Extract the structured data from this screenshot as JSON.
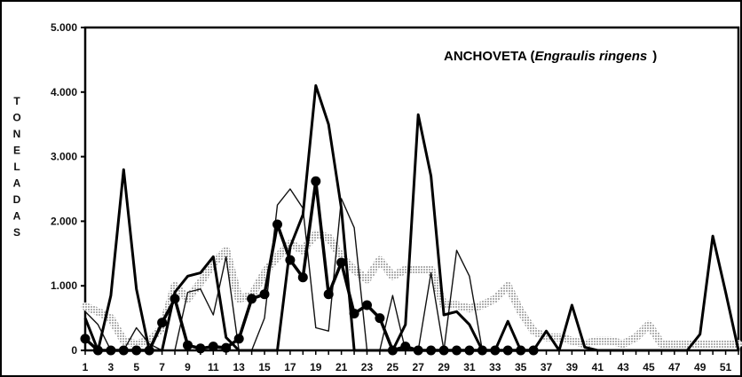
{
  "chart_data": {
    "type": "line",
    "title_plain": "ANCHOVETA (",
    "title_italic": "Engraulis ringens",
    "title_close": ")",
    "ylabel": "TONELADAS",
    "xlabel": "",
    "ylim": [
      0,
      5000
    ],
    "xlim": [
      1,
      52
    ],
    "y_ticks": [
      0,
      1000,
      2000,
      3000,
      4000,
      5000
    ],
    "y_tick_labels": [
      "0",
      "1.000",
      "2.000",
      "3.000",
      "4.000",
      "5.000"
    ],
    "x_ticks": [
      1,
      3,
      5,
      7,
      9,
      11,
      13,
      15,
      17,
      19,
      21,
      23,
      25,
      27,
      29,
      31,
      33,
      35,
      37,
      39,
      41,
      43,
      45,
      47,
      49,
      51
    ],
    "grid": false,
    "series": [
      {
        "style": "thick-dots",
        "color": "#000000",
        "x": [
          1,
          2,
          3,
          4,
          5,
          6,
          7,
          8,
          9,
          10,
          11,
          12,
          13,
          14,
          15,
          16,
          17,
          18,
          19,
          20,
          21,
          22,
          23,
          24,
          25,
          26,
          27,
          28,
          29,
          30,
          31,
          32,
          33,
          34,
          35,
          36
        ],
        "values": [
          180,
          0,
          0,
          0,
          0,
          0,
          430,
          800,
          80,
          30,
          60,
          40,
          180,
          800,
          870,
          1950,
          1400,
          1130,
          2620,
          870,
          1360,
          570,
          700,
          500,
          0,
          60,
          0,
          0,
          0,
          0,
          0,
          0,
          0,
          0,
          0,
          0
        ]
      },
      {
        "style": "thick",
        "color": "#000000",
        "x": [
          1,
          2,
          3,
          4,
          5,
          6,
          7,
          8,
          9,
          10,
          11,
          12,
          13,
          14,
          15,
          16,
          17,
          18,
          19,
          20,
          21,
          22,
          23,
          24,
          25,
          26,
          27,
          28,
          29,
          30,
          31,
          32,
          33,
          34,
          35,
          36,
          37,
          38,
          39,
          40,
          41,
          42,
          43,
          44,
          45,
          46,
          47,
          48,
          49,
          50,
          51,
          52
        ],
        "values": [
          500,
          0,
          850,
          2800,
          950,
          0,
          0,
          900,
          1150,
          1200,
          1450,
          200,
          0,
          0,
          0,
          0,
          1600,
          2100,
          4100,
          3500,
          2200,
          0,
          0,
          0,
          0,
          400,
          3650,
          2700,
          550,
          600,
          400,
          0,
          0,
          450,
          0,
          0,
          300,
          0,
          700,
          50,
          0,
          0,
          0,
          0,
          0,
          0,
          0,
          0,
          250,
          1770,
          900,
          0
        ]
      },
      {
        "style": "thin",
        "color": "#000000",
        "x": [
          1,
          2,
          3,
          4,
          5,
          6,
          7,
          8,
          9,
          10,
          11,
          12,
          13,
          14,
          15,
          16,
          17,
          18,
          19,
          20,
          21,
          22,
          23,
          24,
          25,
          26,
          27,
          28,
          29,
          30,
          31,
          32,
          33,
          34,
          35,
          36
        ],
        "values": [
          600,
          400,
          0,
          0,
          350,
          100,
          0,
          0,
          900,
          950,
          550,
          1450,
          0,
          0,
          500,
          2250,
          2500,
          2200,
          350,
          300,
          2350,
          1900,
          0,
          0,
          850,
          0,
          0,
          1200,
          0,
          1550,
          1150,
          0,
          0,
          0,
          0,
          0
        ]
      },
      {
        "style": "dotted",
        "color": "#8a8a8a",
        "x": [
          1,
          2,
          3,
          4,
          5,
          6,
          7,
          8,
          9,
          10,
          11,
          12,
          13,
          14,
          15,
          16,
          17,
          18,
          19,
          20,
          21,
          22,
          23,
          24,
          25,
          26,
          27,
          28,
          29,
          30,
          31,
          32,
          33,
          34,
          35,
          36,
          37,
          38,
          39,
          40,
          41,
          42,
          43,
          44,
          45,
          46,
          47,
          48,
          49,
          50,
          51,
          52
        ],
        "values": [
          680,
          600,
          500,
          150,
          100,
          150,
          350,
          1000,
          800,
          1050,
          1350,
          1550,
          800,
          850,
          1200,
          1450,
          1650,
          1550,
          1800,
          1750,
          1450,
          1250,
          1100,
          1400,
          1150,
          1250,
          1250,
          1250,
          700,
          700,
          650,
          700,
          800,
          1000,
          600,
          300,
          200,
          200,
          150,
          100,
          150,
          150,
          100,
          200,
          400,
          100,
          100,
          100,
          100,
          100,
          100,
          100
        ]
      }
    ]
  }
}
